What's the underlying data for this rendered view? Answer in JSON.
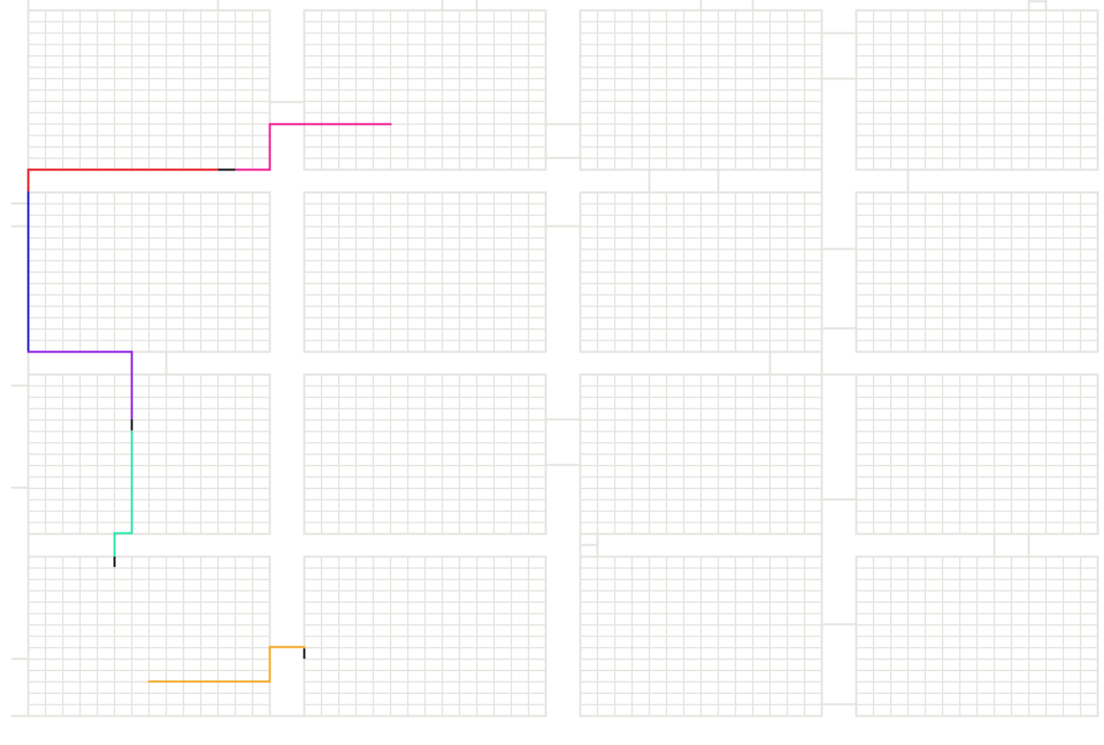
{
  "colors": {
    "background": "#ffffff",
    "grid": "#e6e3df",
    "marker": "#111111"
  },
  "legend": [],
  "routes": [
    {
      "id": "red",
      "color": "#e8141c"
    },
    {
      "id": "pink",
      "color": "#f0188f"
    },
    {
      "id": "blue",
      "color": "#1c12c8"
    },
    {
      "id": "purple",
      "color": "#8c1ce6"
    },
    {
      "id": "teal",
      "color": "#28e6a8"
    },
    {
      "id": "orange",
      "color": "#f5a623"
    }
  ]
}
